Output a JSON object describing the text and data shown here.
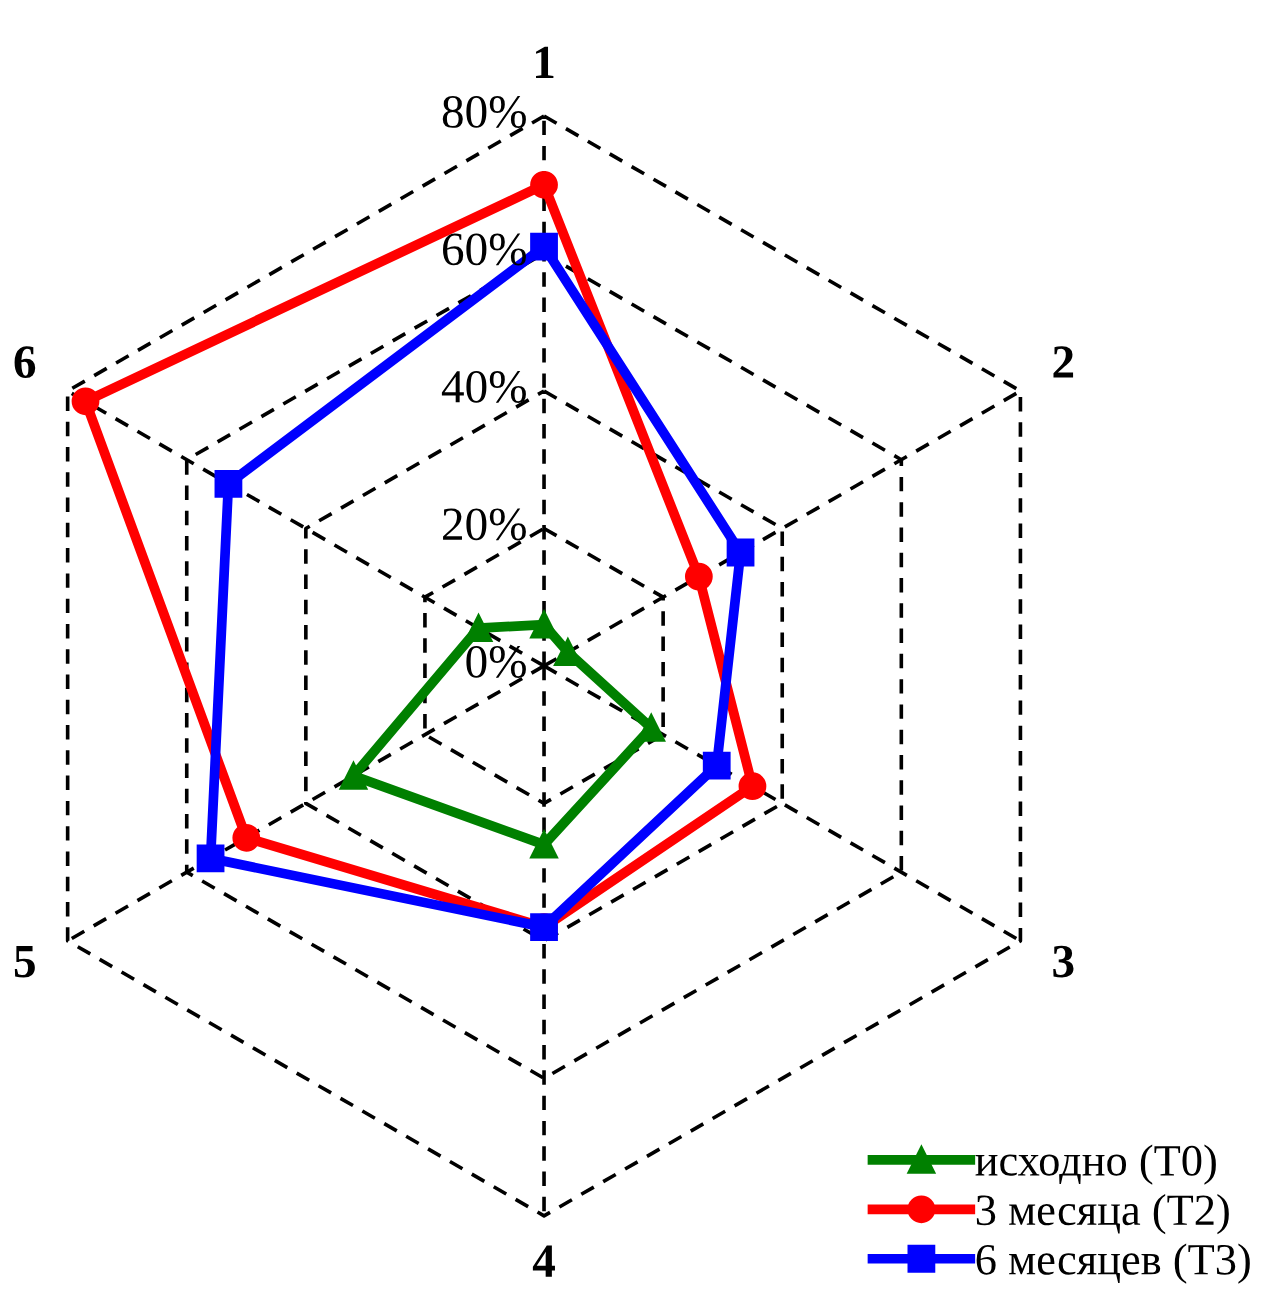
{
  "chart_data": {
    "type": "radar",
    "categories": [
      "1",
      "2",
      "3",
      "4",
      "5",
      "6"
    ],
    "ylim": [
      0,
      80
    ],
    "yticks": [
      {
        "value": 0,
        "label": "0%"
      },
      {
        "value": 20,
        "label": "20%"
      },
      {
        "value": 40,
        "label": "40%"
      },
      {
        "value": 60,
        "label": "60%"
      },
      {
        "value": 80,
        "label": "80%"
      }
    ],
    "series": [
      {
        "name": "исходно (T0)",
        "color": "#008000",
        "marker": "triangle",
        "values": [
          6,
          4,
          18,
          26,
          32,
          11
        ]
      },
      {
        "name": "3 месяца (T2)",
        "color": "#ff0000",
        "marker": "circle",
        "values": [
          70,
          26,
          35,
          38,
          50,
          77
        ]
      },
      {
        "name": "6 месяцев (T3)",
        "color": "#0000ff",
        "marker": "square",
        "values": [
          61,
          33,
          29,
          38,
          56,
          53
        ]
      }
    ],
    "grid": true,
    "legend": "bottom right"
  }
}
